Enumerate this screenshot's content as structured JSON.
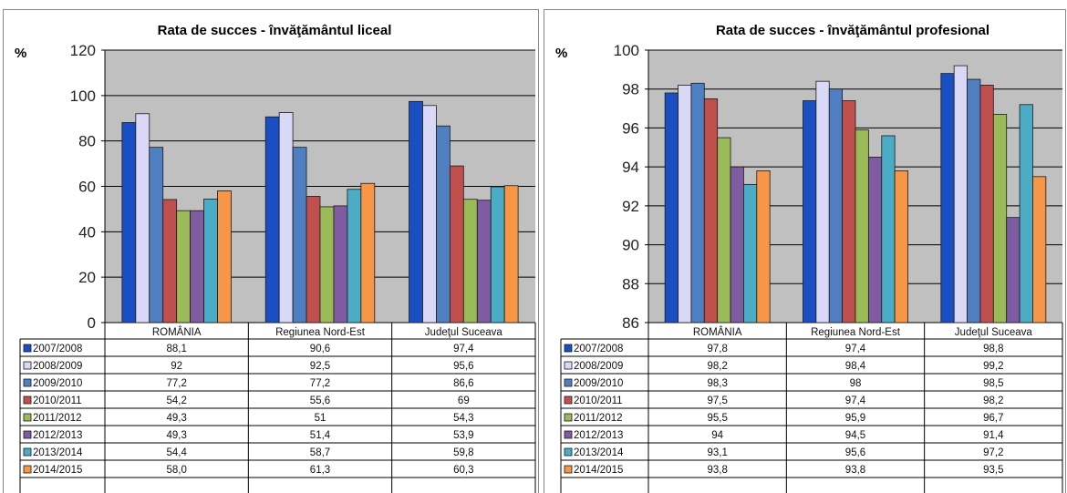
{
  "chart_data": [
    {
      "type": "bar",
      "title": "Rata de succes - învăţământul  liceal",
      "ylabel": "%",
      "ylim": [
        0,
        120
      ],
      "yticks": [
        0,
        20,
        40,
        60,
        80,
        100,
        120
      ],
      "grid": true,
      "categories": [
        "ROMÂNIA",
        "Regiunea Nord-Est",
        "Judeţul Suceava"
      ],
      "series": [
        {
          "name": "2007/2008",
          "values": [
            88.1,
            90.6,
            97.4
          ],
          "labels": [
            "88,1",
            "90,6",
            "97,4"
          ],
          "color": "#1a4fc4"
        },
        {
          "name": "2008/2009",
          "values": [
            92,
            92.5,
            95.6
          ],
          "labels": [
            "92",
            "92,5",
            "95,6"
          ],
          "color": "#d9d9f7"
        },
        {
          "name": "2009/2010",
          "values": [
            77.2,
            77.2,
            86.6
          ],
          "labels": [
            "77,2",
            "77,2",
            "86,6"
          ],
          "color": "#4f7fc0"
        },
        {
          "name": "2010/2011",
          "values": [
            54.2,
            55.6,
            69
          ],
          "labels": [
            "54,2",
            "55,6",
            "69"
          ],
          "color": "#c0504d"
        },
        {
          "name": "2011/2012",
          "values": [
            49.3,
            51,
            54.3
          ],
          "labels": [
            "49,3",
            "51",
            "54,3"
          ],
          "color": "#9bbb59"
        },
        {
          "name": "2012/2013",
          "values": [
            49.3,
            51.4,
            53.9
          ],
          "labels": [
            "49,3",
            "51,4",
            "53,9"
          ],
          "color": "#7f5ca1"
        },
        {
          "name": "2013/2014",
          "values": [
            54.4,
            58.7,
            59.8
          ],
          "labels": [
            "54,4",
            "58,7",
            "59,8"
          ],
          "color": "#4bacc6"
        },
        {
          "name": "2014/2015",
          "values": [
            58.0,
            61.3,
            60.3
          ],
          "labels": [
            "58,0",
            "61,3",
            "60,3"
          ],
          "color": "#f79646"
        }
      ]
    },
    {
      "type": "bar",
      "title": "Rata de succes - învăţământul  profesional",
      "ylabel": "%",
      "ylim": [
        86,
        100
      ],
      "yticks": [
        86,
        88,
        90,
        92,
        94,
        96,
        98,
        100
      ],
      "grid": true,
      "categories": [
        "ROMÂNIA",
        "Regiunea Nord-Est",
        "Judeţul Suceava"
      ],
      "series": [
        {
          "name": "2007/2008",
          "values": [
            97.8,
            97.4,
            98.8
          ],
          "labels": [
            "97,8",
            "97,4",
            "98,8"
          ],
          "color": "#1a4fc4"
        },
        {
          "name": "2008/2009",
          "values": [
            98.2,
            98.4,
            99.2
          ],
          "labels": [
            "98,2",
            "98,4",
            "99,2"
          ],
          "color": "#d9d9f7"
        },
        {
          "name": "2009/2010",
          "values": [
            98.3,
            98,
            98.5
          ],
          "labels": [
            "98,3",
            "98",
            "98,5"
          ],
          "color": "#4f7fc0"
        },
        {
          "name": "2010/2011",
          "values": [
            97.5,
            97.4,
            98.2
          ],
          "labels": [
            "97,5",
            "97,4",
            "98,2"
          ],
          "color": "#c0504d"
        },
        {
          "name": "2011/2012",
          "values": [
            95.5,
            95.9,
            96.7
          ],
          "labels": [
            "95,5",
            "95,9",
            "96,7"
          ],
          "color": "#9bbb59"
        },
        {
          "name": "2012/2013",
          "values": [
            94,
            94.5,
            91.4
          ],
          "labels": [
            "94",
            "94,5",
            "91,4"
          ],
          "color": "#7f5ca1"
        },
        {
          "name": "2013/2014",
          "values": [
            93.1,
            95.6,
            97.2
          ],
          "labels": [
            "93,1",
            "95,6",
            "97,2"
          ],
          "color": "#4bacc6"
        },
        {
          "name": "2014/2015",
          "values": [
            93.8,
            93.8,
            93.5
          ],
          "labels": [
            "93,8",
            "93,8",
            "93,5"
          ],
          "color": "#f79646"
        }
      ]
    }
  ]
}
